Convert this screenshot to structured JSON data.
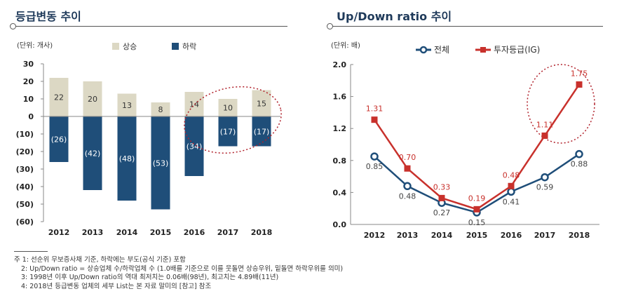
{
  "titles": {
    "left": "등급변동 추이",
    "right": "Up/Down ratio 추이"
  },
  "chart_data": [
    {
      "type": "bar",
      "unit": "(단위: 개사)",
      "categories": [
        "2012",
        "2013",
        "2014",
        "2015",
        "2016",
        "2017",
        "2018"
      ],
      "series": [
        {
          "name": "상승",
          "values": [
            22,
            20,
            13,
            8,
            14,
            10,
            15
          ],
          "color": "#dcd8c4",
          "labels": [
            "22",
            "20",
            "13",
            "8",
            "14",
            "10",
            "15"
          ]
        },
        {
          "name": "하락",
          "values": [
            -26,
            -42,
            -48,
            -53,
            -34,
            -17,
            -17
          ],
          "color": "#1f4e79",
          "labels": [
            "(26)",
            "(42)",
            "(48)",
            "(53)",
            "(34)",
            "(17)",
            "(17)"
          ]
        }
      ],
      "ylim": [
        -60,
        30
      ],
      "yticks": [
        "30",
        "20",
        "10",
        "0",
        "(10)",
        "(20)",
        "(30)",
        "(40)",
        "(50)",
        "(60)"
      ],
      "highlight": [
        "2016",
        "2017",
        "2018"
      ]
    },
    {
      "type": "line",
      "unit": "(단위: 배)",
      "categories": [
        "2012",
        "2013",
        "2014",
        "2015",
        "2016",
        "2017",
        "2018"
      ],
      "series": [
        {
          "name": "전체",
          "values": [
            0.85,
            0.48,
            0.27,
            0.15,
            0.41,
            0.59,
            0.88
          ],
          "color": "#1f4e79",
          "marker": "circle"
        },
        {
          "name": "투자등급(IG)",
          "values": [
            1.31,
            0.7,
            0.33,
            0.19,
            0.48,
            1.11,
            1.75
          ],
          "color": "#c8312c",
          "marker": "square"
        }
      ],
      "ylim": [
        0,
        2.0
      ],
      "yticks": [
        "2.0",
        "1.6",
        "1.2",
        "0.8",
        "0.4",
        "0.0"
      ],
      "highlight": [
        "2017",
        "2018"
      ]
    }
  ],
  "notes": [
    "주 1: 선순위 무보증사채  기준, 하락에는 부도(공식 기준) 포함",
    "2: Up/Down  ratio = 상승업체 수/하락업체  수 (1.0배를 기준으로 이를 웃돌면 상승우위, 밑돌면 하락우위를 의미)",
    "3: 1998년 이후 Up/Down ratio의 역대 최저치는 0.06배(98년), 최고치는 4.89배(11년)",
    "4: 2018년 등급변동 업체의 세부 List는 본 자료 말미의 [참고] 참조"
  ]
}
